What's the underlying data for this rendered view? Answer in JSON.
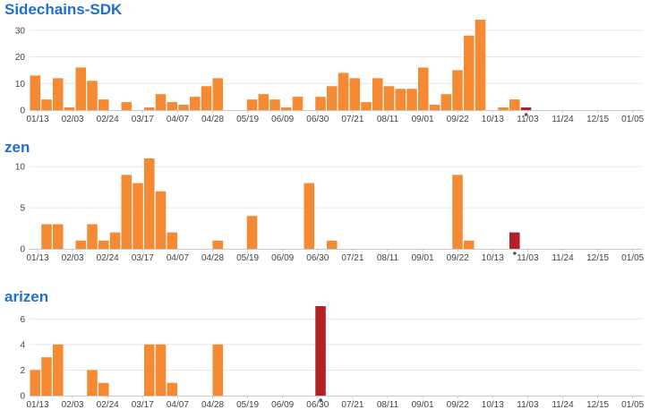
{
  "colors": {
    "bar": "#f58a33",
    "highlight": "#b22028",
    "title": "#1f6fcf",
    "marker": "#555555"
  },
  "panels": [
    {
      "title": "Sidechains-SDK"
    },
    {
      "title": "zen"
    },
    {
      "title": "arizen"
    }
  ],
  "chart_data": [
    {
      "type": "bar",
      "title": "Sidechains-SDK",
      "x_tick_labels": [
        "01/13",
        "02/03",
        "02/24",
        "03/17",
        "04/07",
        "04/28",
        "05/19",
        "06/09",
        "06/30",
        "07/21",
        "08/11",
        "09/01",
        "09/22",
        "10/13",
        "11/03",
        "11/24",
        "12/15",
        "01/05"
      ],
      "ylim": [
        0,
        34
      ],
      "yticks": [
        0,
        10,
        20,
        30
      ],
      "grid": true,
      "values": [
        13,
        4,
        12,
        1,
        16,
        11,
        4,
        0,
        3,
        0,
        1,
        6,
        3,
        2,
        5,
        9,
        12,
        0,
        0,
        4,
        6,
        4,
        1,
        5,
        0,
        5,
        9,
        14,
        12,
        3,
        12,
        9,
        8,
        8,
        16,
        2,
        6,
        15,
        28,
        34,
        0,
        1,
        4,
        1,
        0,
        0,
        0,
        0,
        0,
        0,
        0,
        0,
        0,
        0
      ],
      "highlight_index": 43,
      "marker_index": 43
    },
    {
      "type": "bar",
      "title": "zen",
      "x_tick_labels": [
        "01/13",
        "02/03",
        "02/24",
        "03/17",
        "04/07",
        "04/28",
        "05/19",
        "06/09",
        "06/30",
        "07/21",
        "08/11",
        "09/01",
        "09/22",
        "10/13",
        "11/03",
        "11/24",
        "12/15",
        "01/05"
      ],
      "ylim": [
        0,
        11
      ],
      "yticks": [
        0,
        5,
        10
      ],
      "grid": true,
      "values": [
        0,
        3,
        3,
        0,
        1,
        3,
        1,
        2,
        9,
        8,
        11,
        7,
        2,
        0,
        0,
        0,
        1,
        0,
        0,
        4,
        0,
        0,
        0,
        0,
        8,
        0,
        1,
        0,
        0,
        0,
        0,
        0,
        0,
        0,
        0,
        0,
        0,
        9,
        1,
        0,
        0,
        0,
        2,
        0,
        0,
        0,
        0,
        0,
        0,
        0,
        0,
        0,
        0,
        0
      ],
      "highlight_index": 42,
      "marker_index": 42
    },
    {
      "type": "bar",
      "title": "arizen",
      "x_tick_labels": [
        "01/13",
        "02/03",
        "02/24",
        "03/17",
        "04/07",
        "04/28",
        "05/19",
        "06/09",
        "06/30",
        "07/21",
        "08/11",
        "09/01",
        "09/22",
        "10/13",
        "11/03",
        "11/24",
        "12/15",
        "01/05"
      ],
      "ylim": [
        0,
        7
      ],
      "yticks": [
        0,
        2,
        4,
        6
      ],
      "grid": true,
      "values": [
        2,
        3,
        4,
        0,
        0,
        2,
        1,
        0,
        0,
        0,
        4,
        4,
        1,
        0,
        0,
        0,
        4,
        0,
        0,
        0,
        0,
        0,
        0,
        0,
        0,
        7,
        0,
        0,
        0,
        0,
        0,
        0,
        0,
        0,
        0,
        0,
        0,
        0,
        0,
        0,
        0,
        0,
        0,
        0,
        0,
        0,
        0,
        0,
        0,
        0,
        0,
        0,
        0,
        0
      ],
      "highlight_index": 25,
      "marker_index": 25
    }
  ]
}
